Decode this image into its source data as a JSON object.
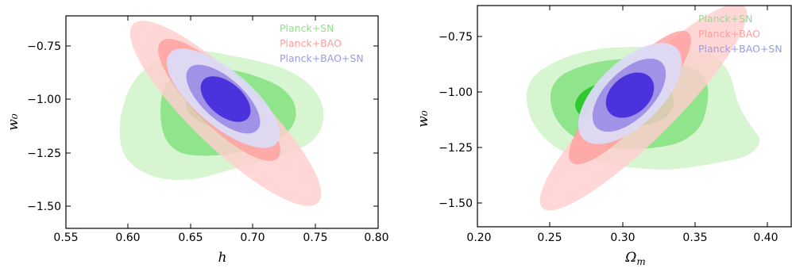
{
  "chart_data": [
    {
      "type": "contour",
      "xlabel": "h",
      "ylabel": "w₀",
      "xlim": [
        0.55,
        0.8
      ],
      "ylim": [
        -1.6,
        -0.62
      ],
      "xticks": [
        "0.55",
        "0.60",
        "0.65",
        "0.70",
        "0.75",
        "0.80"
      ],
      "yticks": [
        "−0.75",
        "−1.00",
        "−1.25",
        "−1.50"
      ],
      "legend_position": "top-right",
      "series": [
        {
          "name": "Planck+SN",
          "color_outer": "#d7f5d1",
          "color_inner": "#8fe38c",
          "color_core": "#2fc92f",
          "contours": [
            {
              "level": "2sigma",
              "points": [
                [
                  0.59,
                  -1.22
                ],
                [
                  0.595,
                  -1.11
                ],
                [
                  0.6,
                  -1.05
                ],
                [
                  0.612,
                  -0.99
                ],
                [
                  0.625,
                  -0.92
                ],
                [
                  0.648,
                  -0.84
                ],
                [
                  0.665,
                  -0.81
                ],
                [
                  0.693,
                  -0.84
                ],
                [
                  0.712,
                  -0.86
                ],
                [
                  0.728,
                  -0.9
                ],
                [
                  0.737,
                  -0.98
                ],
                [
                  0.738,
                  -1.06
                ],
                [
                  0.735,
                  -1.13
                ],
                [
                  0.72,
                  -1.2
                ],
                [
                  0.68,
                  -1.26
                ],
                [
                  0.64,
                  -1.3
                ],
                [
                  0.61,
                  -1.3
                ]
              ]
            },
            {
              "level": "1sigma",
              "points": [
                [
                  0.625,
                  -1.09
                ],
                [
                  0.627,
                  -1.03
                ],
                [
                  0.635,
                  -0.96
                ],
                [
                  0.648,
                  -0.91
                ],
                [
                  0.665,
                  -0.88
                ],
                [
                  0.69,
                  -0.89
                ],
                [
                  0.712,
                  -0.93
                ],
                [
                  0.72,
                  -1.0
                ],
                [
                  0.718,
                  -1.08
                ],
                [
                  0.7,
                  -1.17
                ],
                [
                  0.67,
                  -1.24
                ],
                [
                  0.64,
                  -1.23
                ],
                [
                  0.63,
                  -1.19
                ]
              ]
            },
            {
              "level": "core",
              "points": [
                [
                  0.643,
                  -1.02
                ],
                [
                  0.65,
                  -0.96
                ],
                [
                  0.662,
                  -0.93
                ],
                [
                  0.68,
                  -0.94
                ],
                [
                  0.694,
                  -0.99
                ],
                [
                  0.698,
                  -1.05
                ],
                [
                  0.685,
                  -1.1
                ],
                [
                  0.662,
                  -1.1
                ],
                [
                  0.648,
                  -1.07
                ]
              ]
            }
          ]
        },
        {
          "name": "Planck+BAO",
          "color_outer": "#ffd9d9",
          "color_inner": "#ffaaa8",
          "center": [
            0.676,
            -1.1
          ],
          "orientation_deg": 45,
          "contours": [
            {
              "level": "2sigma",
              "points": [
                [
                  0.607,
                  -0.64
                ],
                [
                  0.75,
                  -1.5
                ]
              ]
            },
            {
              "level": "1sigma",
              "points": [
                [
                  0.631,
                  -0.79
                ],
                [
                  0.725,
                  -1.22
                ]
              ]
            }
          ]
        },
        {
          "name": "Planck+BAO+SN",
          "color_outer": "#dcdcf5",
          "color_inner": "#9e8fe8",
          "color_core": "#4a33dd",
          "center": [
            0.677,
            -1.0
          ],
          "contours": [
            {
              "level": "2sigma",
              "points": [
                [
                  0.628,
                  -0.84
                ],
                [
                  0.728,
                  -1.17
                ]
              ]
            },
            {
              "level": "1sigma",
              "points": [
                [
                  0.647,
                  -0.89
                ],
                [
                  0.707,
                  -1.12
                ]
              ]
            },
            {
              "level": "core",
              "points": [
                [
                  0.66,
                  -0.92
                ],
                [
                  0.695,
                  -1.08
                ]
              ]
            }
          ]
        }
      ]
    },
    {
      "type": "contour",
      "xlabel": "Ω",
      "xlabel_sub": "m",
      "ylabel": "w₀",
      "xlim": [
        0.2,
        0.42
      ],
      "ylim": [
        -1.6,
        -0.6
      ],
      "xticks": [
        "0.20",
        "0.25",
        "0.30",
        "0.35",
        "0.40"
      ],
      "yticks": [
        "−0.75",
        "−1.00",
        "−1.25",
        "−1.50"
      ],
      "legend_position": "top-right",
      "series": [
        {
          "name": "Planck+SN",
          "color_outer": "#d7f5d1",
          "color_inner": "#8fe38c",
          "color_core": "#2fc92f",
          "contours": [
            {
              "level": "2sigma",
              "points": [
                [
                  0.248,
                  -1.02
                ],
                [
                  0.255,
                  -0.93
                ],
                [
                  0.27,
                  -0.86
                ],
                [
                  0.29,
                  -0.8
                ],
                [
                  0.312,
                  -0.77
                ],
                [
                  0.34,
                  -0.78
                ],
                [
                  0.365,
                  -0.83
                ],
                [
                  0.378,
                  -0.9
                ],
                [
                  0.385,
                  -0.98
                ],
                [
                  0.392,
                  -1.08
                ],
                [
                  0.4,
                  -1.18
                ],
                [
                  0.39,
                  -1.25
                ],
                [
                  0.36,
                  -1.34
                ],
                [
                  0.32,
                  -1.34
                ],
                [
                  0.29,
                  -1.32
                ],
                [
                  0.265,
                  -1.27
                ],
                [
                  0.252,
                  -1.18
                ]
              ]
            },
            {
              "level": "1sigma",
              "points": [
                [
                  0.265,
                  -1.05
                ],
                [
                  0.268,
                  -0.97
                ],
                [
                  0.28,
                  -0.91
                ],
                [
                  0.3,
                  -0.88
                ],
                [
                  0.33,
                  -0.89
                ],
                [
                  0.35,
                  -0.93
                ],
                [
                  0.362,
                  -1.02
                ],
                [
                  0.362,
                  -1.1
                ],
                [
                  0.348,
                  -1.17
                ],
                [
                  0.32,
                  -1.22
                ],
                [
                  0.29,
                  -1.18
                ],
                [
                  0.27,
                  -1.12
                ]
              ]
            },
            {
              "level": "core",
              "points": [
                [
                  0.282,
                  -1.04
                ],
                [
                  0.29,
                  -0.98
                ],
                [
                  0.305,
                  -0.96
                ],
                [
                  0.325,
                  -0.97
                ],
                [
                  0.338,
                  -1.02
                ],
                [
                  0.336,
                  -1.08
                ],
                [
                  0.32,
                  -1.12
                ],
                [
                  0.296,
                  -1.1
                ]
              ]
            }
          ]
        },
        {
          "name": "Planck+BAO",
          "color_outer": "#ffd9d9",
          "color_inner": "#ffaaa8",
          "contours": [
            {
              "level": "2sigma",
              "points": [
                [
                  0.246,
                  -1.52
                ],
                [
                  0.378,
                  -0.62
                ]
              ]
            },
            {
              "level": "1sigma",
              "points": [
                [
                  0.272,
                  -1.3
                ],
                [
                  0.345,
                  -0.82
                ]
              ]
            }
          ]
        },
        {
          "name": "Planck+BAO+SN",
          "color_outer": "#dcdcf5",
          "color_inner": "#9e8fe8",
          "color_core": "#4a33dd",
          "contours": [
            {
              "level": "2sigma",
              "points": [
                [
                  0.272,
                  -1.2
                ],
                [
                  0.345,
                  -0.84
                ]
              ]
            },
            {
              "level": "1sigma",
              "points": [
                [
                  0.282,
                  -1.13
                ],
                [
                  0.335,
                  -0.9
                ]
              ]
            },
            {
              "level": "core",
              "points": [
                [
                  0.292,
                  -1.08
                ],
                [
                  0.32,
                  -0.95
                ]
              ]
            }
          ]
        }
      ]
    }
  ]
}
